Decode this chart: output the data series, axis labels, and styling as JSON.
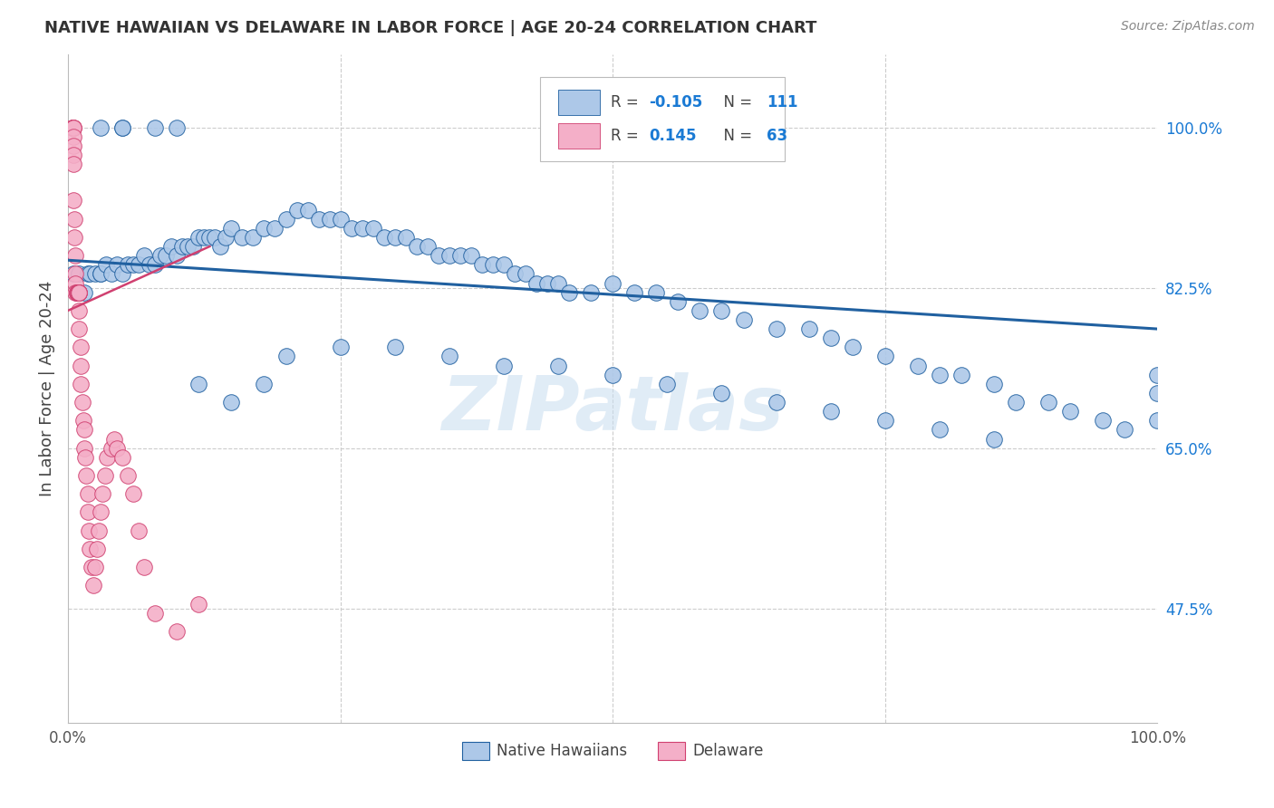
{
  "title": "NATIVE HAWAIIAN VS DELAWARE IN LABOR FORCE | AGE 20-24 CORRELATION CHART",
  "source": "Source: ZipAtlas.com",
  "ylabel": "In Labor Force | Age 20-24",
  "legend_label1": "Native Hawaiians",
  "legend_label2": "Delaware",
  "r1": "-0.105",
  "n1": "111",
  "r2": "0.145",
  "n2": "63",
  "color_blue": "#adc8e8",
  "color_pink": "#f4afc8",
  "line_blue": "#2060a0",
  "line_pink": "#d04070",
  "watermark": "ZIPatlas",
  "xlim": [
    0.0,
    1.0
  ],
  "ylim": [
    0.35,
    1.08
  ],
  "yticks": [
    0.475,
    0.65,
    0.825,
    1.0
  ],
  "yticklabels": [
    "47.5%",
    "65.0%",
    "82.5%",
    "100.0%"
  ],
  "xticks": [
    0.0,
    0.25,
    0.5,
    0.75,
    1.0
  ],
  "xticklabels": [
    "0.0%",
    "",
    "",
    "",
    "100.0%"
  ],
  "blue_scatter_x": [
    0.005,
    0.008,
    0.01,
    0.015,
    0.018,
    0.02,
    0.025,
    0.03,
    0.03,
    0.035,
    0.04,
    0.045,
    0.05,
    0.05,
    0.055,
    0.06,
    0.065,
    0.07,
    0.075,
    0.08,
    0.085,
    0.09,
    0.095,
    0.1,
    0.105,
    0.11,
    0.115,
    0.12,
    0.125,
    0.13,
    0.135,
    0.14,
    0.145,
    0.15,
    0.16,
    0.17,
    0.18,
    0.19,
    0.2,
    0.21,
    0.22,
    0.23,
    0.24,
    0.25,
    0.26,
    0.27,
    0.28,
    0.29,
    0.3,
    0.31,
    0.32,
    0.33,
    0.34,
    0.35,
    0.36,
    0.37,
    0.38,
    0.39,
    0.4,
    0.41,
    0.42,
    0.43,
    0.44,
    0.45,
    0.46,
    0.48,
    0.5,
    0.52,
    0.54,
    0.56,
    0.58,
    0.6,
    0.62,
    0.65,
    0.68,
    0.7,
    0.72,
    0.75,
    0.78,
    0.8,
    0.82,
    0.85,
    0.87,
    0.9,
    0.92,
    0.95,
    0.97,
    1.0,
    1.0,
    1.0,
    0.03,
    0.05,
    0.08,
    0.1,
    0.12,
    0.15,
    0.18,
    0.2,
    0.25,
    0.3,
    0.35,
    0.4,
    0.45,
    0.5,
    0.55,
    0.6,
    0.65,
    0.7,
    0.75,
    0.8,
    0.85
  ],
  "blue_scatter_y": [
    0.84,
    0.82,
    0.84,
    0.82,
    0.84,
    0.84,
    0.84,
    0.84,
    0.84,
    0.85,
    0.84,
    0.85,
    0.84,
    1.0,
    0.85,
    0.85,
    0.85,
    0.86,
    0.85,
    0.85,
    0.86,
    0.86,
    0.87,
    0.86,
    0.87,
    0.87,
    0.87,
    0.88,
    0.88,
    0.88,
    0.88,
    0.87,
    0.88,
    0.89,
    0.88,
    0.88,
    0.89,
    0.89,
    0.9,
    0.91,
    0.91,
    0.9,
    0.9,
    0.9,
    0.89,
    0.89,
    0.89,
    0.88,
    0.88,
    0.88,
    0.87,
    0.87,
    0.86,
    0.86,
    0.86,
    0.86,
    0.85,
    0.85,
    0.85,
    0.84,
    0.84,
    0.83,
    0.83,
    0.83,
    0.82,
    0.82,
    0.83,
    0.82,
    0.82,
    0.81,
    0.8,
    0.8,
    0.79,
    0.78,
    0.78,
    0.77,
    0.76,
    0.75,
    0.74,
    0.73,
    0.73,
    0.72,
    0.7,
    0.7,
    0.69,
    0.68,
    0.67,
    0.68,
    0.71,
    0.73,
    1.0,
    1.0,
    1.0,
    1.0,
    0.72,
    0.7,
    0.72,
    0.75,
    0.76,
    0.76,
    0.75,
    0.74,
    0.74,
    0.73,
    0.72,
    0.71,
    0.7,
    0.69,
    0.68,
    0.67,
    0.66
  ],
  "pink_scatter_x": [
    0.004,
    0.004,
    0.004,
    0.005,
    0.005,
    0.005,
    0.005,
    0.005,
    0.005,
    0.005,
    0.005,
    0.006,
    0.006,
    0.007,
    0.007,
    0.007,
    0.007,
    0.008,
    0.008,
    0.008,
    0.009,
    0.009,
    0.009,
    0.01,
    0.01,
    0.01,
    0.01,
    0.01,
    0.01,
    0.01,
    0.012,
    0.012,
    0.012,
    0.013,
    0.014,
    0.015,
    0.015,
    0.016,
    0.017,
    0.018,
    0.018,
    0.019,
    0.02,
    0.022,
    0.023,
    0.025,
    0.027,
    0.028,
    0.03,
    0.032,
    0.034,
    0.036,
    0.04,
    0.042,
    0.045,
    0.05,
    0.055,
    0.06,
    0.065,
    0.07,
    0.08,
    0.1,
    0.12
  ],
  "pink_scatter_y": [
    1.0,
    1.0,
    1.0,
    1.0,
    1.0,
    1.0,
    0.99,
    0.98,
    0.97,
    0.96,
    0.92,
    0.9,
    0.88,
    0.86,
    0.84,
    0.83,
    0.82,
    0.82,
    0.82,
    0.82,
    0.82,
    0.82,
    0.82,
    0.82,
    0.82,
    0.82,
    0.82,
    0.82,
    0.8,
    0.78,
    0.76,
    0.74,
    0.72,
    0.7,
    0.68,
    0.67,
    0.65,
    0.64,
    0.62,
    0.6,
    0.58,
    0.56,
    0.54,
    0.52,
    0.5,
    0.52,
    0.54,
    0.56,
    0.58,
    0.6,
    0.62,
    0.64,
    0.65,
    0.66,
    0.65,
    0.64,
    0.62,
    0.6,
    0.56,
    0.52,
    0.47,
    0.45,
    0.48
  ],
  "blue_line_x": [
    0.0,
    1.0
  ],
  "blue_line_y": [
    0.855,
    0.78
  ],
  "pink_line_x": [
    0.0,
    0.13
  ],
  "pink_line_y": [
    0.8,
    0.87
  ]
}
